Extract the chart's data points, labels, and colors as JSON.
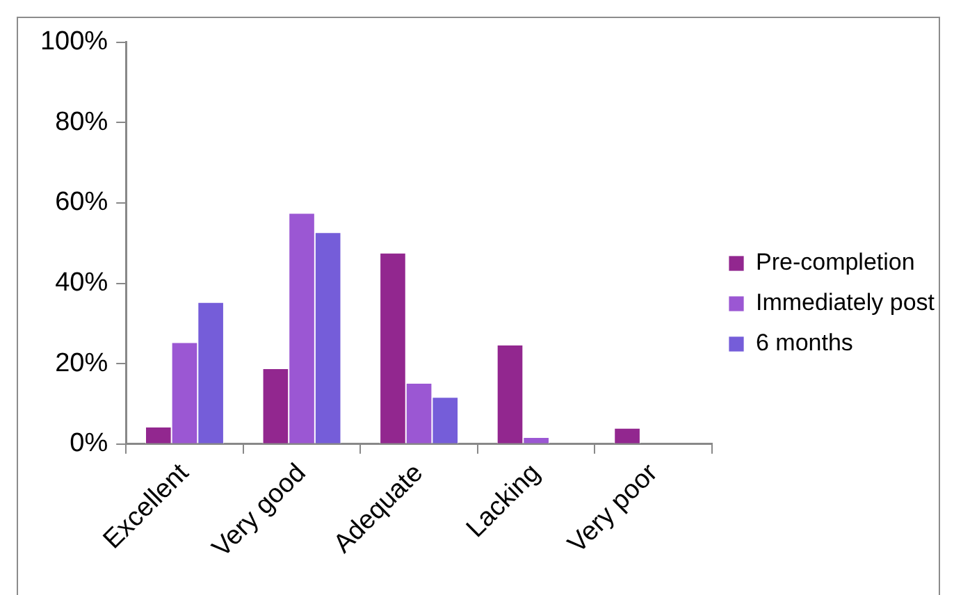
{
  "chart_data": {
    "type": "bar",
    "categories": [
      "Excellent",
      "Very good",
      "Adequate",
      "Lacking",
      "Very poor"
    ],
    "series": [
      {
        "name": "Pre-completion",
        "color": "#92278f",
        "values": [
          4.3,
          18.8,
          47.6,
          24.7,
          4.0
        ]
      },
      {
        "name": "Immediately post",
        "color": "#9b57d3",
        "values": [
          25.3,
          57.5,
          15.2,
          1.7,
          0
        ]
      },
      {
        "name": "6 months",
        "color": "#755dd9",
        "values": [
          35.3,
          52.7,
          11.7,
          0,
          0
        ]
      }
    ],
    "ylim": [
      0,
      100
    ],
    "yticks": [
      {
        "value": 0,
        "label": "0%"
      },
      {
        "value": 20,
        "label": "20%"
      },
      {
        "value": 40,
        "label": "40%"
      },
      {
        "value": 60,
        "label": "60%"
      },
      {
        "value": 80,
        "label": "80%"
      },
      {
        "value": 100,
        "label": "100%"
      }
    ],
    "grid": false,
    "legend": "right"
  }
}
